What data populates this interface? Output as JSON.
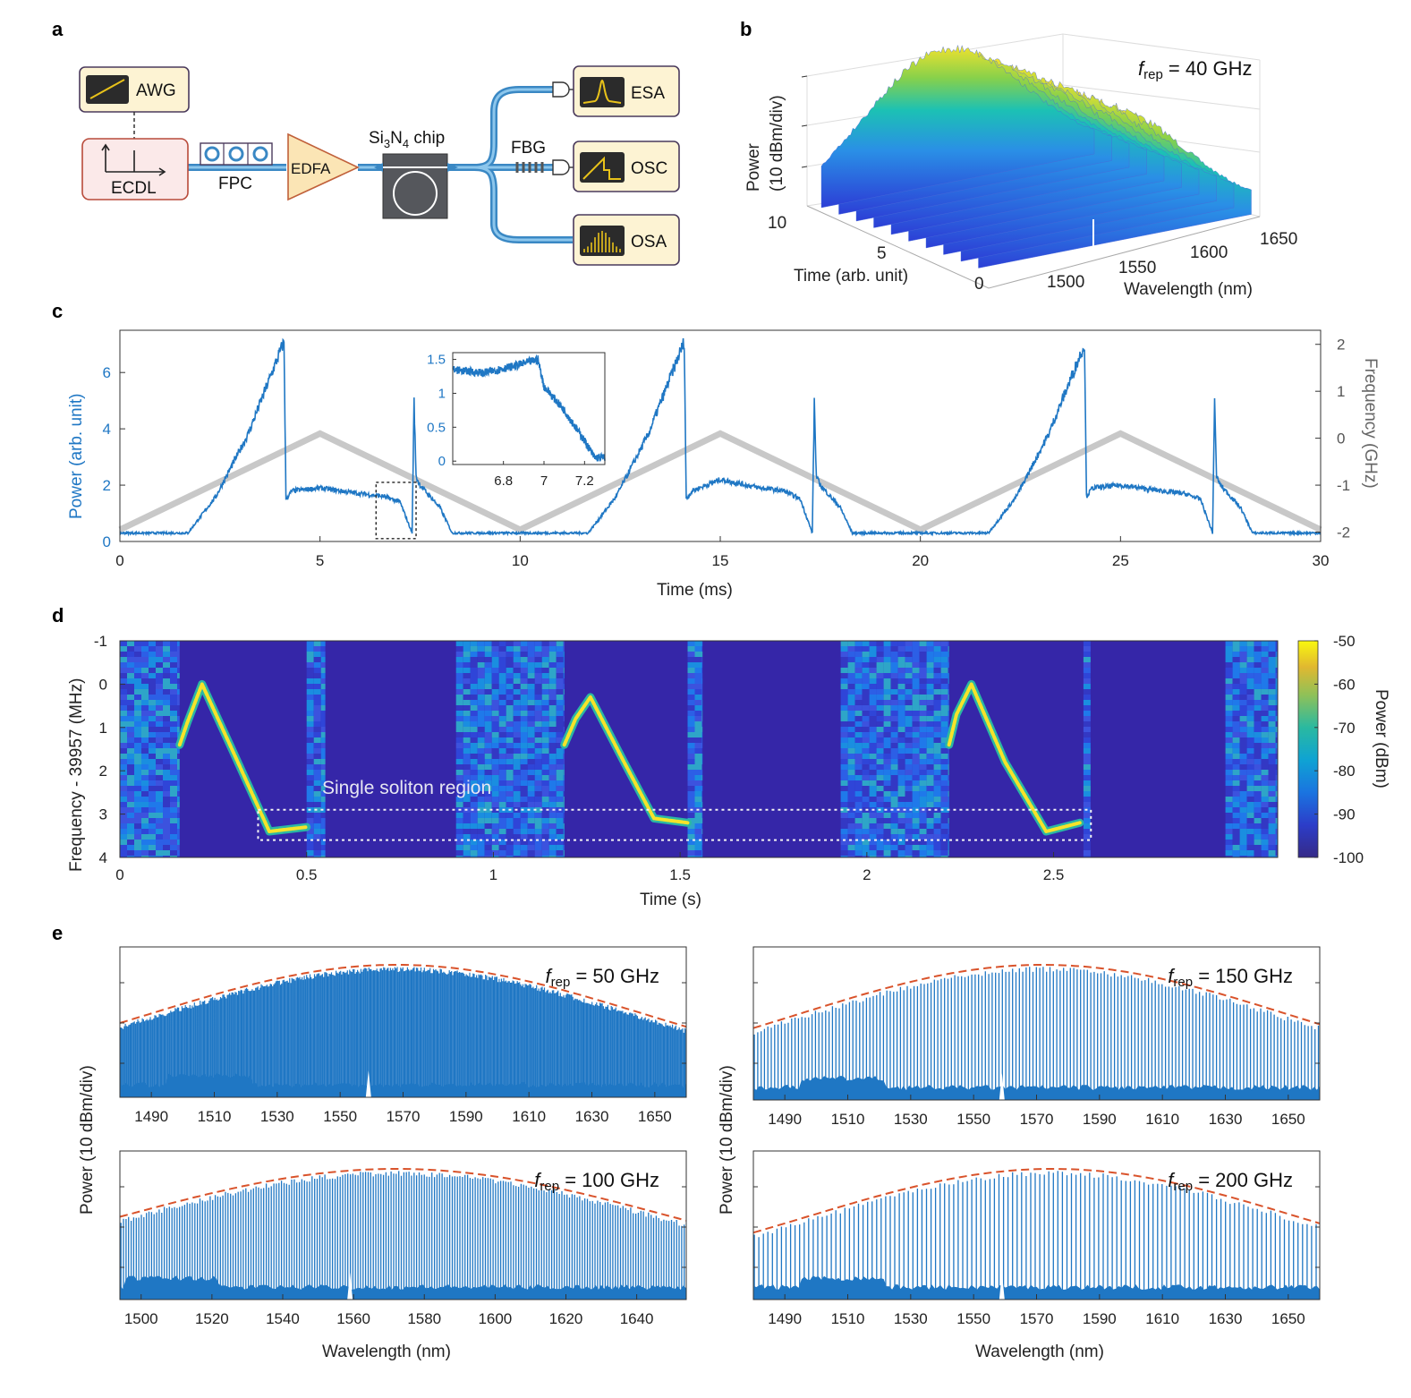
{
  "panels": {
    "a": "a",
    "b": "b",
    "c": "c",
    "d": "d",
    "e": "e"
  },
  "setup": {
    "awg": "AWG",
    "ecdl": "ECDL",
    "fpc": "FPC",
    "edfa": "EDFA",
    "chip_pre": "Si",
    "chip_sub1": "3",
    "chip_mid": "N",
    "chip_sub2": "4",
    "chip_post": " chip",
    "fbg": "FBG",
    "esa": "ESA",
    "osc": "OSC",
    "osa": "OSA",
    "colors": {
      "ecdl_fill": "#fbe9e9",
      "ecdl_border": "#b84a3a",
      "box_fill": "#fdf3d3",
      "box_border": "#4a3a5c",
      "edfa_fill": "#fbe5b5",
      "edfa_border": "#c0603a",
      "fiber": "#4c9fd6",
      "chip": "#55575c",
      "screen": "#2b2b2b",
      "trace": "#e8c21a"
    },
    "icons": [
      "sawtooth-icon",
      "axes-icon",
      "ring-resonator-icon",
      "photodetector-icon",
      "lorentzian-icon",
      "step-icon",
      "comb-icon"
    ]
  },
  "chart_b": {
    "label_rep": "rep",
    "label_eq": " = 40 GHz",
    "label_f": "f",
    "zlabel_1": "Power",
    "zlabel_2": "(10 dBm/div)",
    "ylabel": "Time (arb. unit)",
    "xlabel": "Wavelength (nm)",
    "time_ticks": [
      "10",
      "5",
      "0"
    ],
    "wl_ticks": [
      "1500",
      "1550",
      "1600",
      "1650"
    ]
  },
  "chart_data": [
    {
      "id": "c",
      "type": "line",
      "xlabel": "Time (ms)",
      "ylabel": "Power (arb. unit)",
      "y2label": "Frequency (GHz)",
      "xlim": [
        0,
        30
      ],
      "ylim": [
        0,
        7.5
      ],
      "y2lim": [
        -2.2,
        2.3
      ],
      "xticks": [
        "0",
        "5",
        "10",
        "15",
        "20",
        "25",
        "30"
      ],
      "yticks": [
        "0",
        "2",
        "4",
        "6"
      ],
      "y2ticks": [
        "2",
        "1",
        "0",
        "-1",
        "-2"
      ],
      "series": [
        {
          "kind": "power",
          "color": "#1f77c4",
          "x": [
            0,
            1.7,
            2.4,
            3.2,
            4.1,
            4.15,
            4.3,
            5.0,
            6.0,
            6.6,
            7.0,
            7.3,
            7.35,
            7.4,
            7.5,
            8.0,
            8.3,
            10,
            11.7,
            12.4,
            13.2,
            14.1,
            14.15,
            14.3,
            15.0,
            16.0,
            16.6,
            17.0,
            17.3,
            17.35,
            17.4,
            17.5,
            18.0,
            18.3,
            20,
            21.7,
            22.4,
            23.2,
            24.1,
            24.15,
            24.3,
            25.0,
            26.0,
            26.6,
            27.0,
            27.3,
            27.35,
            27.4,
            27.5,
            28.0,
            28.3,
            30
          ],
          "y": [
            0.3,
            0.3,
            1.6,
            3.8,
            7.1,
            1.5,
            1.8,
            1.9,
            1.7,
            1.6,
            1.4,
            0.3,
            5.0,
            2.3,
            2.0,
            1.2,
            0.3,
            0.3,
            0.3,
            1.6,
            3.8,
            7.1,
            1.5,
            1.8,
            2.2,
            1.9,
            1.8,
            1.5,
            0.3,
            5.0,
            2.3,
            2.0,
            1.2,
            0.3,
            0.3,
            0.3,
            1.6,
            3.8,
            7.0,
            1.6,
            1.9,
            2.0,
            1.8,
            1.7,
            1.5,
            0.3,
            5.0,
            2.3,
            2.0,
            1.2,
            0.3,
            0.3
          ]
        },
        {
          "kind": "frequency",
          "color": "#c8c8c8",
          "x": [
            0,
            5,
            10,
            15,
            20,
            25,
            30
          ],
          "y": [
            -1.95,
            0.1,
            -1.95,
            0.1,
            -1.95,
            0.1,
            -1.95
          ]
        }
      ],
      "dashed_box": {
        "x": [
          6.4,
          7.4
        ],
        "y": [
          0.1,
          2.1
        ]
      }
    },
    {
      "id": "c-inset",
      "type": "line",
      "xlim": [
        6.55,
        7.3
      ],
      "ylim": [
        -0.05,
        1.6
      ],
      "xticks": [
        "6.8",
        "7",
        "7.2"
      ],
      "yticks": [
        "0",
        "0.5",
        "1",
        "1.5"
      ],
      "series": [
        {
          "kind": "power-zoom",
          "color": "#1f77c4",
          "x": [
            6.55,
            6.7,
            6.85,
            6.97,
            7.0,
            7.1,
            7.2,
            7.25,
            7.3
          ],
          "y": [
            1.35,
            1.3,
            1.4,
            1.5,
            1.1,
            0.75,
            0.3,
            0.05,
            0.05
          ]
        }
      ]
    },
    {
      "id": "d",
      "type": "heatmap",
      "xlabel": "Time (s)",
      "ylabel": "Frequency - 39957 (MHz)",
      "colorbar_label": "Power (dBm)",
      "xlim": [
        0,
        3.1
      ],
      "ylim": [
        -1,
        4
      ],
      "xticks": [
        "0",
        "0.5",
        "1",
        "1.5",
        "2",
        "2.5"
      ],
      "yticks": [
        "-1",
        "0",
        "1",
        "2",
        "3",
        "4"
      ],
      "cticks": [
        "-50",
        "-60",
        "-70",
        "-80",
        "-90",
        "-100"
      ],
      "annotation": "Single soliton region",
      "noise_bands": [
        [
          0,
          0.16
        ],
        [
          0.5,
          0.55
        ],
        [
          0.9,
          1.19
        ],
        [
          1.52,
          1.56
        ],
        [
          1.93,
          2.22
        ],
        [
          2.58,
          2.6
        ],
        [
          2.96,
          3.1
        ]
      ],
      "traces": [
        {
          "t": [
            0.16,
            0.18,
            0.22,
            0.3,
            0.4,
            0.5
          ],
          "f": [
            1.4,
            0.9,
            0.0,
            1.5,
            3.4,
            3.3
          ]
        },
        {
          "t": [
            1.19,
            1.22,
            1.26,
            1.35,
            1.43,
            1.52
          ],
          "f": [
            1.4,
            0.8,
            0.3,
            1.8,
            3.1,
            3.2
          ]
        },
        {
          "t": [
            2.22,
            2.24,
            2.28,
            2.37,
            2.48,
            2.57
          ],
          "f": [
            1.4,
            0.7,
            0.0,
            1.8,
            3.4,
            3.2
          ]
        }
      ],
      "dashed_box": {
        "t": [
          0.37,
          2.6
        ],
        "f": [
          2.9,
          3.6
        ]
      }
    },
    {
      "id": "e1",
      "type": "area",
      "label_f": "f",
      "label_rep": "rep",
      "label_eq": " = 50 GHz",
      "xlim": [
        1480,
        1660
      ],
      "xticks": [
        "1490",
        "1510",
        "1530",
        "1550",
        "1570",
        "1590",
        "1610",
        "1630",
        "1650"
      ],
      "envelope_peak": 1568,
      "spacing_nm": 0.4
    },
    {
      "id": "e2",
      "type": "area",
      "label_f": "f",
      "label_rep": "rep",
      "label_eq": " = 150 GHz",
      "xlim": [
        1480,
        1660
      ],
      "xticks": [
        "1490",
        "1510",
        "1530",
        "1550",
        "1570",
        "1590",
        "1610",
        "1630",
        "1650"
      ],
      "envelope_peak": 1572,
      "spacing_nm": 1.2
    },
    {
      "id": "e3",
      "type": "area",
      "label_f": "f",
      "label_rep": "rep",
      "label_eq": " = 100 GHz",
      "xlim": [
        1494,
        1654
      ],
      "xticks": [
        "1500",
        "1520",
        "1540",
        "1560",
        "1580",
        "1600",
        "1620",
        "1640"
      ],
      "envelope_peak": 1572,
      "spacing_nm": 0.8
    },
    {
      "id": "e4",
      "type": "area",
      "label_f": "f",
      "label_rep": "rep",
      "label_eq": " = 200 GHz",
      "xlim": [
        1480,
        1660
      ],
      "xticks": [
        "1490",
        "1510",
        "1530",
        "1550",
        "1570",
        "1590",
        "1610",
        "1630",
        "1650"
      ],
      "envelope_peak": 1575,
      "spacing_nm": 1.6
    }
  ],
  "panel_e": {
    "ylabel": "Power (10 dBm/div)",
    "xlabel": "Wavelength (nm)"
  }
}
